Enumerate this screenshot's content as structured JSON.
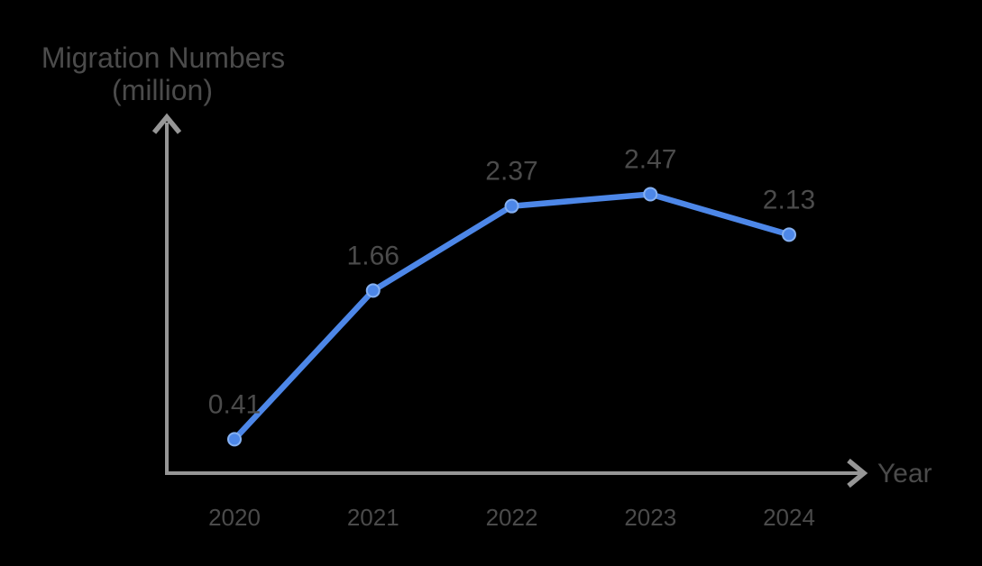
{
  "chart": {
    "title_line1": "Migration Numbers",
    "title_line2": "(million)",
    "x_axis_label": "Year"
  },
  "colors": {
    "background": "#000000",
    "axis": "#969696",
    "text": "#4b4b4b",
    "line": "#4d87e8",
    "marker_ring": "#86b1f2"
  },
  "chart_data": {
    "type": "line",
    "title": "Migration Numbers (million)",
    "xlabel": "Year",
    "ylabel": "Migration Numbers (million)",
    "categories": [
      "2020",
      "2021",
      "2022",
      "2023",
      "2024"
    ],
    "values": [
      0.41,
      1.66,
      2.37,
      2.47,
      2.13
    ],
    "value_labels": [
      "0.41",
      "1.66",
      "2.37",
      "2.47",
      "2.13"
    ],
    "series": [
      {
        "name": "Migration Numbers (million)",
        "values": [
          0.41,
          1.66,
          2.37,
          2.47,
          2.13
        ]
      }
    ],
    "ylim": [
      0,
      3
    ],
    "grid": false,
    "legend": false,
    "axis_arrows": true
  }
}
